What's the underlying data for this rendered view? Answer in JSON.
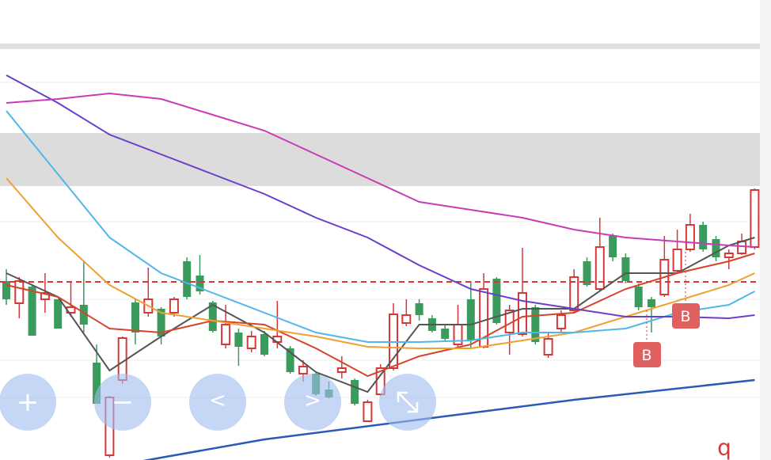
{
  "chart_data": {
    "type": "candlestick",
    "ylim": [
      0,
      58.1
    ],
    "price_line": 22.5,
    "up_color": "#d6383a",
    "down_color": "#3a9b5c",
    "open": [
      22.6,
      19.8,
      21.9,
      20.3,
      20.3,
      18.6,
      19.6,
      12.3,
      0.6,
      10.1,
      19.9,
      18.6,
      19.1,
      18.6,
      25.1,
      23.3,
      19.9,
      14.6,
      16.1,
      14.1,
      15.9,
      14.9,
      14.1,
      10.9,
      10.9,
      8.9,
      11.1,
      10.1,
      4.9,
      8.3,
      11.6,
      17.3,
      19.8,
      17.9,
      16.6,
      14.6,
      20.3,
      14.3,
      22.9,
      16.1,
      15.9,
      19.3,
      13.3,
      16.6,
      18.9,
      25.1,
      21.6,
      28.3,
      25.6,
      21.9,
      20.3,
      20.9,
      23.9,
      26.6,
      29.7,
      27.9,
      25.6,
      26.1,
      26.9
    ],
    "high": [
      24.1,
      23.1,
      22.1,
      23.6,
      20.3,
      22.6,
      25.1,
      14.6,
      8.1,
      15.6,
      20.3,
      24.3,
      19.3,
      20.6,
      25.6,
      25.9,
      20.1,
      19.6,
      16.6,
      16.3,
      16.3,
      20.1,
      14.4,
      12.6,
      11.1,
      9.9,
      13.1,
      10.3,
      7.6,
      12.1,
      19.8,
      20.3,
      20.3,
      18.3,
      17.1,
      19.6,
      22.6,
      23.6,
      23.1,
      19.6,
      26.8,
      19.6,
      16.1,
      18.9,
      24.1,
      25.6,
      30.6,
      28.6,
      26.1,
      22.3,
      20.6,
      28.3,
      29.1,
      31.1,
      30.1,
      28.3,
      26.6,
      28.6,
      34.3
    ],
    "low": [
      19.6,
      17.9,
      15.7,
      18.6,
      16.6,
      18.1,
      16.1,
      7.1,
      0.3,
      9.6,
      14.6,
      18.1,
      14.6,
      18.1,
      20.3,
      20.9,
      16.1,
      14.1,
      11.9,
      13.6,
      13.1,
      14.1,
      10.9,
      9.9,
      8.1,
      7.8,
      10.3,
      6.9,
      4.8,
      8.1,
      11.3,
      16.9,
      17.6,
      16.1,
      15.1,
      14.1,
      14.1,
      14.1,
      17.1,
      13.3,
      15.6,
      14.6,
      12.9,
      16.1,
      18.6,
      21.9,
      21.3,
      25.1,
      22.3,
      18.9,
      16.1,
      20.6,
      23.6,
      26.3,
      26.3,
      25.1,
      24.1,
      25.9,
      26.6
    ],
    "close": [
      20.3,
      22.6,
      15.7,
      21.1,
      16.6,
      19.3,
      17.1,
      7.1,
      7.9,
      15.4,
      16.1,
      20.3,
      15.6,
      20.3,
      20.6,
      21.3,
      16.3,
      17.1,
      14.3,
      15.6,
      13.3,
      15.6,
      11.1,
      11.8,
      8.3,
      7.9,
      11.6,
      7.1,
      7.3,
      11.6,
      18.4,
      18.3,
      18.3,
      16.3,
      15.3,
      17.1,
      15.1,
      21.6,
      17.3,
      18.9,
      21.1,
      14.9,
      15.3,
      18.3,
      23.1,
      22.1,
      26.9,
      25.6,
      22.6,
      19.3,
      19.3,
      25.3,
      26.6,
      29.7,
      26.6,
      25.6,
      26.1,
      27.6,
      34.1
    ],
    "series": [
      {
        "color": "#555555",
        "x": [
          0,
          4,
          8,
          12,
          16,
          20,
          24,
          28,
          32,
          36,
          40,
          44,
          48,
          52,
          56,
          58
        ],
        "values": [
          23.6,
          20.6,
          11.3,
          15.6,
          19.6,
          16.1,
          11.1,
          8.6,
          17.1,
          17.1,
          19.1,
          19.1,
          23.6,
          23.6,
          27.1,
          28.1
        ]
      },
      {
        "color": "#d4452a",
        "x": [
          0,
          4,
          8,
          12,
          16,
          20,
          24,
          28,
          32,
          36,
          40,
          44,
          48,
          52,
          56,
          58
        ],
        "values": [
          22.1,
          20.6,
          16.6,
          16.1,
          17.6,
          17.1,
          14.1,
          10.6,
          13.1,
          14.6,
          18.1,
          18.6,
          21.6,
          23.6,
          25.1,
          26.1
        ]
      },
      {
        "color": "#f0a030",
        "x": [
          0,
          4,
          8,
          12,
          16,
          20,
          24,
          28,
          32,
          36,
          40,
          44,
          48,
          52,
          56,
          58
        ],
        "values": [
          35.6,
          28.1,
          22.1,
          18.6,
          17.6,
          16.6,
          15.6,
          14.3,
          14.1,
          14.1,
          15.1,
          16.1,
          18.1,
          20.1,
          22.1,
          23.6
        ]
      },
      {
        "color": "#4fb8e8",
        "x": [
          0,
          4,
          8,
          12,
          16,
          20,
          24,
          28,
          32,
          36,
          40,
          44,
          48,
          52,
          56,
          58
        ],
        "values": [
          44.1,
          36.1,
          28.1,
          23.6,
          21.1,
          18.6,
          16.1,
          14.9,
          14.9,
          15.1,
          16.1,
          16.1,
          16.6,
          18.6,
          19.6,
          21.3
        ]
      },
      {
        "color": "#6a3ec8",
        "x": [
          0,
          4,
          8,
          12,
          16,
          20,
          24,
          28,
          32,
          36,
          40,
          44,
          48,
          52,
          56,
          58
        ],
        "values": [
          48.6,
          45.1,
          41.1,
          38.6,
          36.1,
          33.6,
          30.6,
          28.1,
          24.6,
          21.6,
          20.1,
          19.1,
          18.1,
          18.1,
          17.9,
          18.3
        ]
      },
      {
        "color": "#c83cb8",
        "x": [
          0,
          4,
          8,
          12,
          16,
          20,
          24,
          28,
          32,
          36,
          40,
          44,
          48,
          52,
          56,
          58
        ],
        "values": [
          45.1,
          45.6,
          46.3,
          45.6,
          43.6,
          41.6,
          38.6,
          35.6,
          32.6,
          31.6,
          30.6,
          29.1,
          28.1,
          27.6,
          27.1,
          26.9
        ]
      },
      {
        "color": "#2a5ab8",
        "x": [
          8,
          12,
          20,
          32,
          44,
          58
        ],
        "values": [
          -0.9,
          0.3,
          2.6,
          5.1,
          7.6,
          10.1
        ]
      }
    ]
  },
  "markers": [
    {
      "label": "B"
    },
    {
      "label": "B"
    }
  ],
  "buttons": [
    "+",
    "−",
    "<",
    ">"
  ],
  "corner_text": "q"
}
